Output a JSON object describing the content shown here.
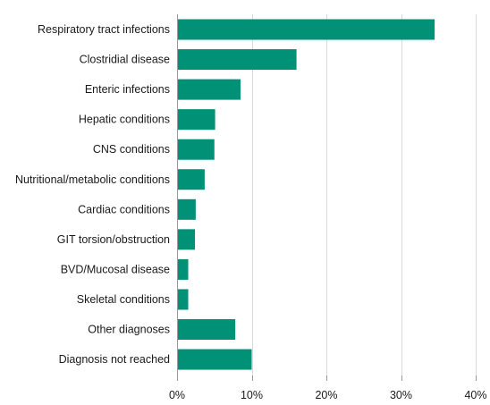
{
  "chart_data": {
    "type": "bar",
    "orientation": "horizontal",
    "title": "",
    "xlabel": "",
    "ylabel": "",
    "categories": [
      "Respiratory tract infections",
      "Clostridial disease",
      "Enteric infections",
      "Hepatic conditions",
      "CNS conditions",
      "Nutritional/metabolic conditions",
      "Cardiac conditions",
      "GIT torsion/obstruction",
      "BVD/Mucosal disease",
      "Skeletal conditions",
      "Other diagnoses",
      "Diagnosis not reached"
    ],
    "values": [
      34.5,
      16.0,
      8.5,
      5.1,
      5.0,
      3.7,
      2.5,
      2.4,
      1.5,
      1.5,
      7.8,
      10.0
    ],
    "xlim": [
      0,
      40
    ],
    "x_ticks": [
      0,
      10,
      20,
      30,
      40
    ],
    "x_tick_labels": [
      "0%",
      "10%",
      "20%",
      "30%",
      "40%"
    ],
    "grid": "vertical",
    "bar_color": "#009177",
    "grid_color": "#d9d9d9",
    "axis_color": "#9a9a9a"
  }
}
